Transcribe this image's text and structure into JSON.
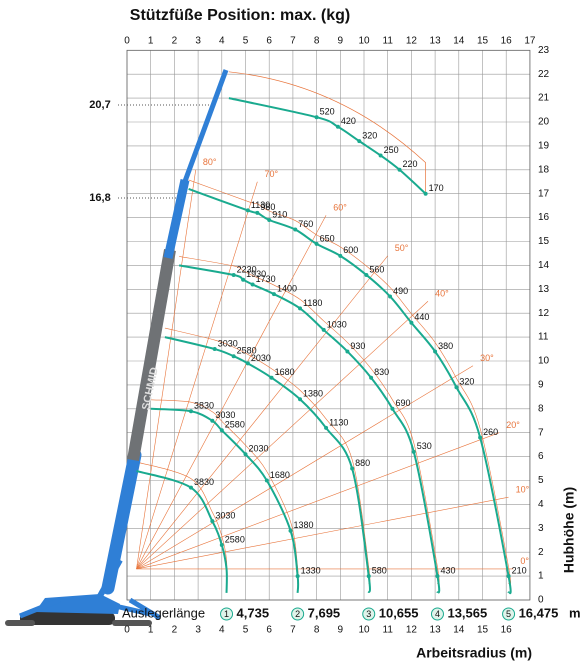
{
  "title": "Stützfüße Position: max. (kg)",
  "x_axis": {
    "label": "Arbeitsradius (m)",
    "top_ticks": [
      0,
      1,
      2,
      3,
      4,
      5,
      6,
      7,
      8,
      9,
      10,
      11,
      12,
      13,
      14,
      15,
      16,
      17
    ],
    "bottom_ticks": [
      0,
      1,
      2,
      3,
      4,
      5,
      6,
      7,
      8,
      9,
      10,
      11,
      12,
      13,
      14,
      15,
      16
    ]
  },
  "y_axis": {
    "label": "Hubhöhe (m)",
    "ticks": [
      0,
      1,
      2,
      3,
      4,
      5,
      6,
      7,
      8,
      9,
      10,
      11,
      12,
      13,
      14,
      15,
      16,
      17,
      18,
      19,
      20,
      21,
      22,
      23
    ],
    "marks": [
      "20,7",
      "16,8"
    ]
  },
  "angles": [
    "80°",
    "70°",
    "60°",
    "50°",
    "40°",
    "30°",
    "20°",
    "10°",
    "0°"
  ],
  "boom": {
    "label": "Auslegerlänge",
    "unit": "m",
    "lengths": [
      {
        "no": "1",
        "length": "4,735"
      },
      {
        "no": "2",
        "length": "7,695"
      },
      {
        "no": "3",
        "length": "10,655"
      },
      {
        "no": "4",
        "length": "13,565"
      },
      {
        "no": "5",
        "length": "16,475"
      }
    ]
  },
  "curves": [
    {
      "loads": [
        "3830",
        "3030",
        "2580"
      ]
    },
    {
      "loads": [
        "3830",
        "3030",
        "2580",
        "2030",
        "1680",
        "1380",
        "1330"
      ]
    },
    {
      "loads": [
        "3030",
        "2580",
        "2030",
        "1680",
        "1380",
        "1130",
        "880",
        "580"
      ]
    },
    {
      "loads": [
        "2230",
        "1930",
        "1730",
        "1400",
        "1180",
        "1030",
        "930",
        "830",
        "690",
        "530",
        "430"
      ]
    },
    {
      "loads": [
        "1130",
        "980",
        "910",
        "760",
        "650",
        "600",
        "560",
        "490",
        "440",
        "380",
        "320",
        "260",
        "210"
      ]
    },
    {
      "loads": [
        "520",
        "420",
        "320",
        "250",
        "220",
        "170"
      ]
    }
  ]
}
